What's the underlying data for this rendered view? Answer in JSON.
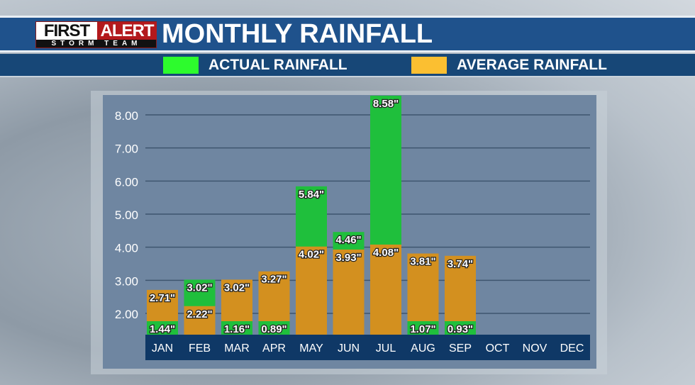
{
  "header": {
    "logo": {
      "first": "FIRST",
      "alert": "ALERT",
      "sub": "STORM TEAM"
    },
    "title": "MONTHLY RAINFALL"
  },
  "colors": {
    "actual": "#1fbf3c",
    "average": "#d3901f",
    "axis_band": "#0f3866",
    "legend_actual": "#2dfb2d",
    "legend_average": "#fbbf31"
  },
  "chart_data": {
    "type": "bar",
    "title": "MONTHLY RAINFALL",
    "categories": [
      "JAN",
      "FEB",
      "MAR",
      "APR",
      "MAY",
      "JUN",
      "JUL",
      "AUG",
      "SEP",
      "OCT",
      "NOV",
      "DEC"
    ],
    "series": [
      {
        "name": "ACTUAL RAINFALL",
        "values": [
          1.44,
          3.02,
          1.16,
          0.89,
          5.84,
          4.46,
          8.58,
          1.07,
          0.93,
          null,
          null,
          null
        ],
        "labels": [
          "1.44\"",
          "3.02\"",
          "1.16\"",
          "0.89\"",
          "5.84\"",
          "4.46\"",
          "8.58\"",
          "1.07\"",
          "0.93\"",
          "",
          "",
          ""
        ]
      },
      {
        "name": "AVERAGE RAINFALL",
        "values": [
          2.71,
          2.22,
          3.02,
          3.27,
          4.02,
          3.93,
          4.08,
          3.81,
          3.74,
          null,
          null,
          null
        ],
        "labels": [
          "2.71\"",
          "2.22\"",
          "3.02\"",
          "3.27\"",
          "4.02\"",
          "3.93\"",
          "4.08\"",
          "3.81\"",
          "3.74\"",
          "",
          "",
          ""
        ]
      }
    ],
    "yticks": [
      "2.00",
      "3.00",
      "4.00",
      "5.00",
      "6.00",
      "7.00",
      "8.00"
    ],
    "grid": true,
    "legend": "top"
  }
}
